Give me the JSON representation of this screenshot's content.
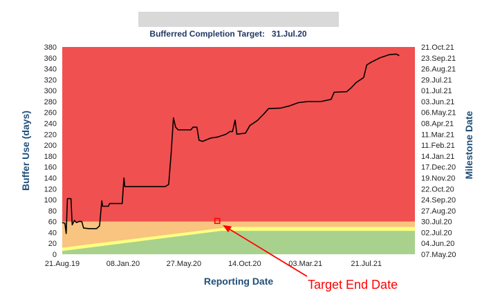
{
  "redacted_banner": {
    "color": "#d9d9d9"
  },
  "chart_data": {
    "type": "area",
    "title": "Bufferred Completion Target:   31.Jul.20",
    "xlabel": "Reporting Date",
    "ylabel": "Buffer Use (days)",
    "y2label": "Milestone Date",
    "x_range": [
      "2019-08-21",
      "2021-11-10"
    ],
    "ylim": [
      0,
      380
    ],
    "x_ticks": [
      {
        "date": "2019-08-21",
        "label": "21.Aug.19"
      },
      {
        "date": "2020-01-08",
        "label": "08.Jan.20"
      },
      {
        "date": "2020-05-27",
        "label": "27.May.20"
      },
      {
        "date": "2020-10-14",
        "label": "14.Oct.20"
      },
      {
        "date": "2021-03-03",
        "label": "03.Mar.21"
      },
      {
        "date": "2021-07-21",
        "label": "21.Jul.21"
      }
    ],
    "y_ticks": [
      0,
      20,
      40,
      60,
      80,
      100,
      120,
      140,
      160,
      180,
      200,
      220,
      240,
      260,
      280,
      300,
      320,
      340,
      360,
      380
    ],
    "y2_ticks": [
      "07.May.20",
      "04.Jun.20",
      "02.Jul.20",
      "30.Jul.20",
      "27.Aug.20",
      "24.Sep.20",
      "22.Oct.20",
      "19.Nov.20",
      "17.Dec.20",
      "14.Jan.21",
      "11.Feb.21",
      "11.Mar.21",
      "08.Apr.21",
      "06.May.21",
      "03.Jun.21",
      "01.Jul.21",
      "29.Jul.21",
      "26.Aug.21",
      "23.Sep.21",
      "21.Oct.21"
    ],
    "zones": {
      "red": {
        "color": "#f05050"
      },
      "orange": {
        "color": "#f8c480"
      },
      "yellow": {
        "color": "#ffff80"
      },
      "green": {
        "color": "#a9d18e"
      },
      "orange_top": [
        [
          "2019-08-21",
          60
        ],
        [
          "2021-11-10",
          60
        ]
      ],
      "yellow_top": [
        [
          "2019-08-21",
          12
        ],
        [
          "2020-08-21",
          48
        ],
        [
          "2020-09-01",
          50
        ],
        [
          "2021-11-10",
          50
        ]
      ],
      "green_top": [
        [
          "2019-08-21",
          6
        ],
        [
          "2020-08-21",
          43
        ],
        [
          "2021-11-10",
          43
        ]
      ]
    },
    "series": [
      {
        "color": "#000000",
        "points": [
          [
            "2019-08-21",
            58
          ],
          [
            "2019-08-27",
            57
          ],
          [
            "2019-08-30",
            38
          ],
          [
            "2019-09-02",
            102
          ],
          [
            "2019-09-10",
            102
          ],
          [
            "2019-09-13",
            54
          ],
          [
            "2019-09-18",
            62
          ],
          [
            "2019-09-23",
            58
          ],
          [
            "2019-09-28",
            60
          ],
          [
            "2019-10-05",
            60
          ],
          [
            "2019-10-09",
            48
          ],
          [
            "2019-10-22",
            47
          ],
          [
            "2019-11-08",
            47
          ],
          [
            "2019-11-15",
            52
          ],
          [
            "2019-11-20",
            98
          ],
          [
            "2019-11-22",
            88
          ],
          [
            "2019-12-05",
            88
          ],
          [
            "2019-12-08",
            93
          ],
          [
            "2020-01-06",
            93
          ],
          [
            "2020-01-10",
            140
          ],
          [
            "2020-01-12",
            124
          ],
          [
            "2020-04-14",
            124
          ],
          [
            "2020-04-22",
            128
          ],
          [
            "2020-04-28",
            187
          ],
          [
            "2020-05-03",
            250
          ],
          [
            "2020-05-08",
            233
          ],
          [
            "2020-05-14",
            228
          ],
          [
            "2020-06-12",
            228
          ],
          [
            "2020-06-17",
            233
          ],
          [
            "2020-06-26",
            233
          ],
          [
            "2020-07-01",
            209
          ],
          [
            "2020-07-09",
            207
          ],
          [
            "2020-07-28",
            213
          ],
          [
            "2020-08-13",
            215
          ],
          [
            "2020-09-01",
            220
          ],
          [
            "2020-09-10",
            225
          ],
          [
            "2020-09-16",
            225
          ],
          [
            "2020-09-22",
            246
          ],
          [
            "2020-09-26",
            220
          ],
          [
            "2020-10-16",
            222
          ],
          [
            "2020-10-26",
            236
          ],
          [
            "2020-11-12",
            245
          ],
          [
            "2020-11-28",
            258
          ],
          [
            "2020-12-08",
            267
          ],
          [
            "2021-01-05",
            268
          ],
          [
            "2021-01-25",
            272
          ],
          [
            "2021-02-15",
            278
          ],
          [
            "2021-03-09",
            280
          ],
          [
            "2021-04-08",
            280
          ],
          [
            "2021-05-01",
            284
          ],
          [
            "2021-05-08",
            297
          ],
          [
            "2021-06-06",
            298
          ],
          [
            "2021-06-16",
            305
          ],
          [
            "2021-06-28",
            315
          ],
          [
            "2021-07-15",
            324
          ],
          [
            "2021-07-22",
            347
          ],
          [
            "2021-08-01",
            352
          ],
          [
            "2021-08-21",
            360
          ],
          [
            "2021-09-12",
            366
          ],
          [
            "2021-09-28",
            367
          ],
          [
            "2021-10-05",
            364
          ]
        ]
      }
    ],
    "target_marker": {
      "date": "2020-08-12",
      "value": 61,
      "color": "#ff0000"
    },
    "annotation": {
      "text": "Target End Date",
      "color": "#ff0000"
    }
  }
}
